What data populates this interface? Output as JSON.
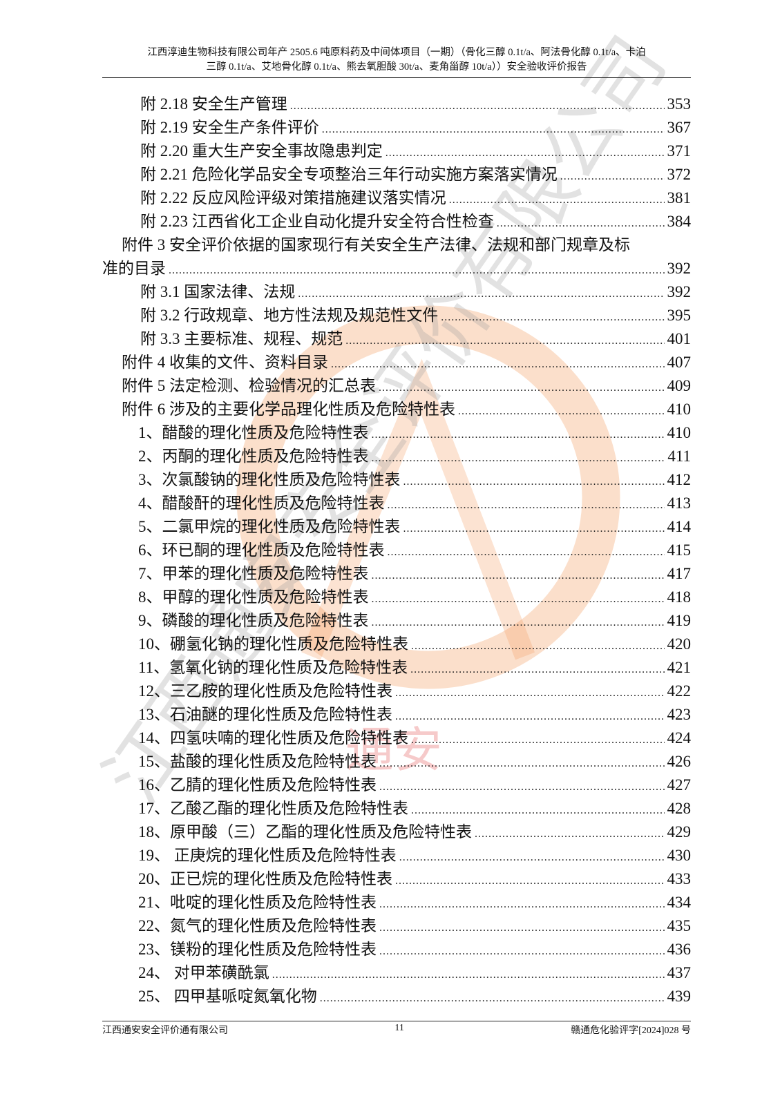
{
  "header": {
    "line1": "江西淳迪生物科技有限公司年产 2505.6 吨原料药及中间体项目（一期）（骨化三醇 0.1t/a、阿法骨化醇 0.1t/a、卡泊",
    "line2": "三醇 0.1t/a、艾地骨化醇 0.1t/a、熊去氧胆酸 30t/a、麦角甾醇  10t/a））安全验收评价报告"
  },
  "toc": [
    {
      "text": "附 2.18 安全生产管理",
      "page": "353",
      "level": 2
    },
    {
      "text": "附 2.19 安全生产条件评价",
      "page": "367",
      "level": 2
    },
    {
      "text": "附 2.20 重大生产安全事故隐患判定",
      "page": "371",
      "level": 2
    },
    {
      "text": "附 2.21 危险化学品安全专项整治三年行动实施方案落实情况",
      "page": "372",
      "level": 2
    },
    {
      "text": "附 2.22  反应风险评级对策措施建议落实情况",
      "page": "381",
      "level": 2
    },
    {
      "text": "附 2.23 江西省化工企业自动化提升安全符合性检查",
      "page": "384",
      "level": 2
    },
    {
      "text": "附件 3 安全评价依据的国家现行有关安全生产法律、法规和部门规章及标",
      "page": "",
      "level": 1
    },
    {
      "text": "准的目录",
      "page": "392",
      "level": 0
    },
    {
      "text": "附 3.1 国家法律、法规",
      "page": "392",
      "level": 2
    },
    {
      "text": "附 3.2 行政规章、地方性法规及规范性文件",
      "page": "395",
      "level": 2
    },
    {
      "text": "附 3.3 主要标准、规程、规范",
      "page": "401",
      "level": 2
    },
    {
      "text": "附件 4 收集的文件、资料目录",
      "page": "407",
      "level": 1
    },
    {
      "text": "附件 5 法定检测、检验情况的汇总表",
      "page": "409",
      "level": 1
    },
    {
      "text": "附件 6 涉及的主要化学品理化性质及危险特性表",
      "page": "410",
      "level": 1
    },
    {
      "text": "1、醋酸的理化性质及危险特性表",
      "page": "410",
      "level": 3
    },
    {
      "text": "2、丙酮的理化性质及危险特性表",
      "page": "411",
      "level": 3
    },
    {
      "text": "3、次氯酸钠的理化性质及危险特性表",
      "page": "412",
      "level": 3
    },
    {
      "text": "4、醋酸酐的理化性质及危险特性表",
      "page": "413",
      "level": 3
    },
    {
      "text": "5、二氯甲烷的理化性质及危险特性表",
      "page": "414",
      "level": 3
    },
    {
      "text": "6、环已酮的理化性质及危险特性表",
      "page": "415",
      "level": 3
    },
    {
      "text": "7、甲苯的理化性质及危险特性表",
      "page": "417",
      "level": 3
    },
    {
      "text": "8、甲醇的理化性质及危险特性表",
      "page": "418",
      "level": 3
    },
    {
      "text": "9、磷酸的理化性质及危险特性表",
      "page": "419",
      "level": 3
    },
    {
      "text": "10、硼氢化钠的理化性质及危险特性表",
      "page": "420",
      "level": 3
    },
    {
      "text": "11、氢氧化钠的理化性质及危险特性表",
      "page": "421",
      "level": 3
    },
    {
      "text": "12、三乙胺的理化性质及危险特性表",
      "page": "422",
      "level": 3
    },
    {
      "text": "13、石油醚的理化性质及危险特性表",
      "page": "423",
      "level": 3
    },
    {
      "text": "14、四氢呋喃的理化性质及危险特性表",
      "page": "424",
      "level": 3
    },
    {
      "text": "15、盐酸的理化性质及危险特性表",
      "page": "426",
      "level": 3
    },
    {
      "text": "16、乙腈的理化性质及危险特性表",
      "page": "427",
      "level": 3
    },
    {
      "text": "17、乙酸乙酯的理化性质及危险特性表",
      "page": "428",
      "level": 3
    },
    {
      "text": "18、原甲酸（三）乙酯的理化性质及危险特性表",
      "page": "429",
      "level": 3
    },
    {
      "text": "19、  正庚烷的理化性质及危险特性表",
      "page": "430",
      "level": 3
    },
    {
      "text": "20、正已烷的理化性质及危险特性表",
      "page": "433",
      "level": 3
    },
    {
      "text": "21、吡啶的理化性质及危险特性表",
      "page": "434",
      "level": 3
    },
    {
      "text": "22、氮气的理化性质及危险特性表",
      "page": "435",
      "level": 3
    },
    {
      "text": "23、镁粉的理化性质及危险特性表",
      "page": "436",
      "level": 3
    },
    {
      "text": "24、  对甲苯磺酰氯",
      "page": "437",
      "level": 3
    },
    {
      "text": "25、  四甲基哌啶氮氧化物",
      "page": "439",
      "level": 3
    }
  ],
  "footer": {
    "left": "江西通安安全评价通有限公司",
    "center": "11",
    "right": "赣通危化验评字[2024]028 号"
  },
  "watermark": {
    "text": "江西通安安全评价有限公司",
    "stamp_text": "通安",
    "colors": {
      "stamp": "#f4a36a",
      "text": "#9a9a9a",
      "stamp_red": "#e86a6a",
      "stamp_blue": "#8fc7e8"
    }
  }
}
